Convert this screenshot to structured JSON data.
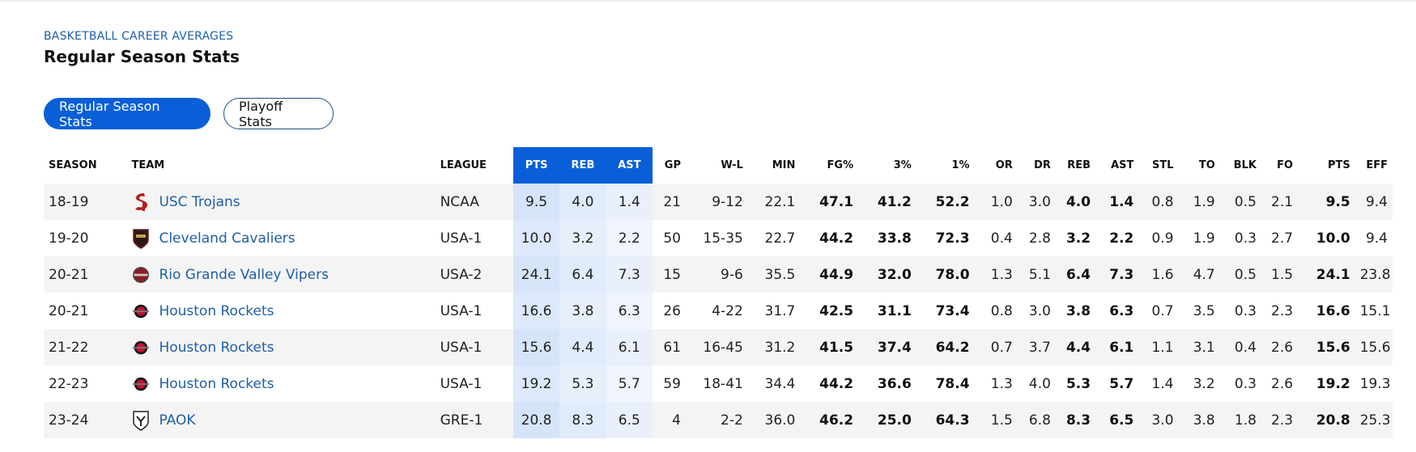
{
  "header": {
    "eyebrow": "BASKETBALL CAREER AVERAGES",
    "title": "Regular Season Stats"
  },
  "tabs": [
    {
      "label": "Regular Season Stats",
      "active": true
    },
    {
      "label": "Playoff Stats",
      "active": false
    }
  ],
  "colors": {
    "accent": "#0a5fd8",
    "link": "#1f5fa8",
    "highlight": "#dde9fb"
  },
  "table": {
    "columns": [
      "SEASON",
      "TEAM",
      "LEAGUE",
      "PTS",
      "REB",
      "AST",
      "GP",
      "W-L",
      "MIN",
      "FG%",
      "3%",
      "1%",
      "OR",
      "DR",
      "REB",
      "AST",
      "STL",
      "TO",
      "BLK",
      "FO",
      "PTS",
      "EFF"
    ],
    "rows": [
      {
        "season": "18-19",
        "team": "USC Trojans",
        "logo": "usc-trojans-logo",
        "league": "NCAA",
        "pts": "9.5",
        "reb": "4.0",
        "ast": "1.4",
        "gp": "21",
        "wl": "9-12",
        "min": "22.1",
        "fg": "47.1",
        "three": "41.2",
        "ft": "52.2",
        "or": "1.0",
        "dr": "3.0",
        "reb2": "4.0",
        "ast2": "1.4",
        "stl": "0.8",
        "to": "1.9",
        "blk": "0.5",
        "fo": "2.1",
        "pts2": "9.5",
        "eff": "9.4"
      },
      {
        "season": "19-20",
        "team": "Cleveland Cavaliers",
        "logo": "cleveland-cavaliers-logo",
        "league": "USA-1",
        "pts": "10.0",
        "reb": "3.2",
        "ast": "2.2",
        "gp": "50",
        "wl": "15-35",
        "min": "22.7",
        "fg": "44.2",
        "three": "33.8",
        "ft": "72.3",
        "or": "0.4",
        "dr": "2.8",
        "reb2": "3.2",
        "ast2": "2.2",
        "stl": "0.9",
        "to": "1.9",
        "blk": "0.3",
        "fo": "2.7",
        "pts2": "10.0",
        "eff": "9.4"
      },
      {
        "season": "20-21",
        "team": "Rio Grande Valley Vipers",
        "logo": "rgv-vipers-logo",
        "league": "USA-2",
        "pts": "24.1",
        "reb": "6.4",
        "ast": "7.3",
        "gp": "15",
        "wl": "9-6",
        "min": "35.5",
        "fg": "44.9",
        "three": "32.0",
        "ft": "78.0",
        "or": "1.3",
        "dr": "5.1",
        "reb2": "6.4",
        "ast2": "7.3",
        "stl": "1.6",
        "to": "4.7",
        "blk": "0.5",
        "fo": "1.5",
        "pts2": "24.1",
        "eff": "23.8"
      },
      {
        "season": "20-21",
        "team": "Houston Rockets",
        "logo": "houston-rockets-logo",
        "league": "USA-1",
        "pts": "16.6",
        "reb": "3.8",
        "ast": "6.3",
        "gp": "26",
        "wl": "4-22",
        "min": "31.7",
        "fg": "42.5",
        "three": "31.1",
        "ft": "73.4",
        "or": "0.8",
        "dr": "3.0",
        "reb2": "3.8",
        "ast2": "6.3",
        "stl": "0.7",
        "to": "3.5",
        "blk": "0.3",
        "fo": "2.3",
        "pts2": "16.6",
        "eff": "15.1"
      },
      {
        "season": "21-22",
        "team": "Houston Rockets",
        "logo": "houston-rockets-logo",
        "league": "USA-1",
        "pts": "15.6",
        "reb": "4.4",
        "ast": "6.1",
        "gp": "61",
        "wl": "16-45",
        "min": "31.2",
        "fg": "41.5",
        "three": "37.4",
        "ft": "64.2",
        "or": "0.7",
        "dr": "3.7",
        "reb2": "4.4",
        "ast2": "6.1",
        "stl": "1.1",
        "to": "3.1",
        "blk": "0.4",
        "fo": "2.6",
        "pts2": "15.6",
        "eff": "15.6"
      },
      {
        "season": "22-23",
        "team": "Houston Rockets",
        "logo": "houston-rockets-logo",
        "league": "USA-1",
        "pts": "19.2",
        "reb": "5.3",
        "ast": "5.7",
        "gp": "59",
        "wl": "18-41",
        "min": "34.4",
        "fg": "44.2",
        "three": "36.6",
        "ft": "78.4",
        "or": "1.3",
        "dr": "4.0",
        "reb2": "5.3",
        "ast2": "5.7",
        "stl": "1.4",
        "to": "3.2",
        "blk": "0.3",
        "fo": "2.6",
        "pts2": "19.2",
        "eff": "19.3"
      },
      {
        "season": "23-24",
        "team": "PAOK",
        "logo": "paok-logo",
        "league": "GRE-1",
        "pts": "20.8",
        "reb": "8.3",
        "ast": "6.5",
        "gp": "4",
        "wl": "2-2",
        "min": "36.0",
        "fg": "46.2",
        "three": "25.0",
        "ft": "64.3",
        "or": "1.5",
        "dr": "6.8",
        "reb2": "8.3",
        "ast2": "6.5",
        "stl": "3.0",
        "to": "3.8",
        "blk": "1.8",
        "fo": "2.3",
        "pts2": "20.8",
        "eff": "25.3"
      }
    ]
  }
}
